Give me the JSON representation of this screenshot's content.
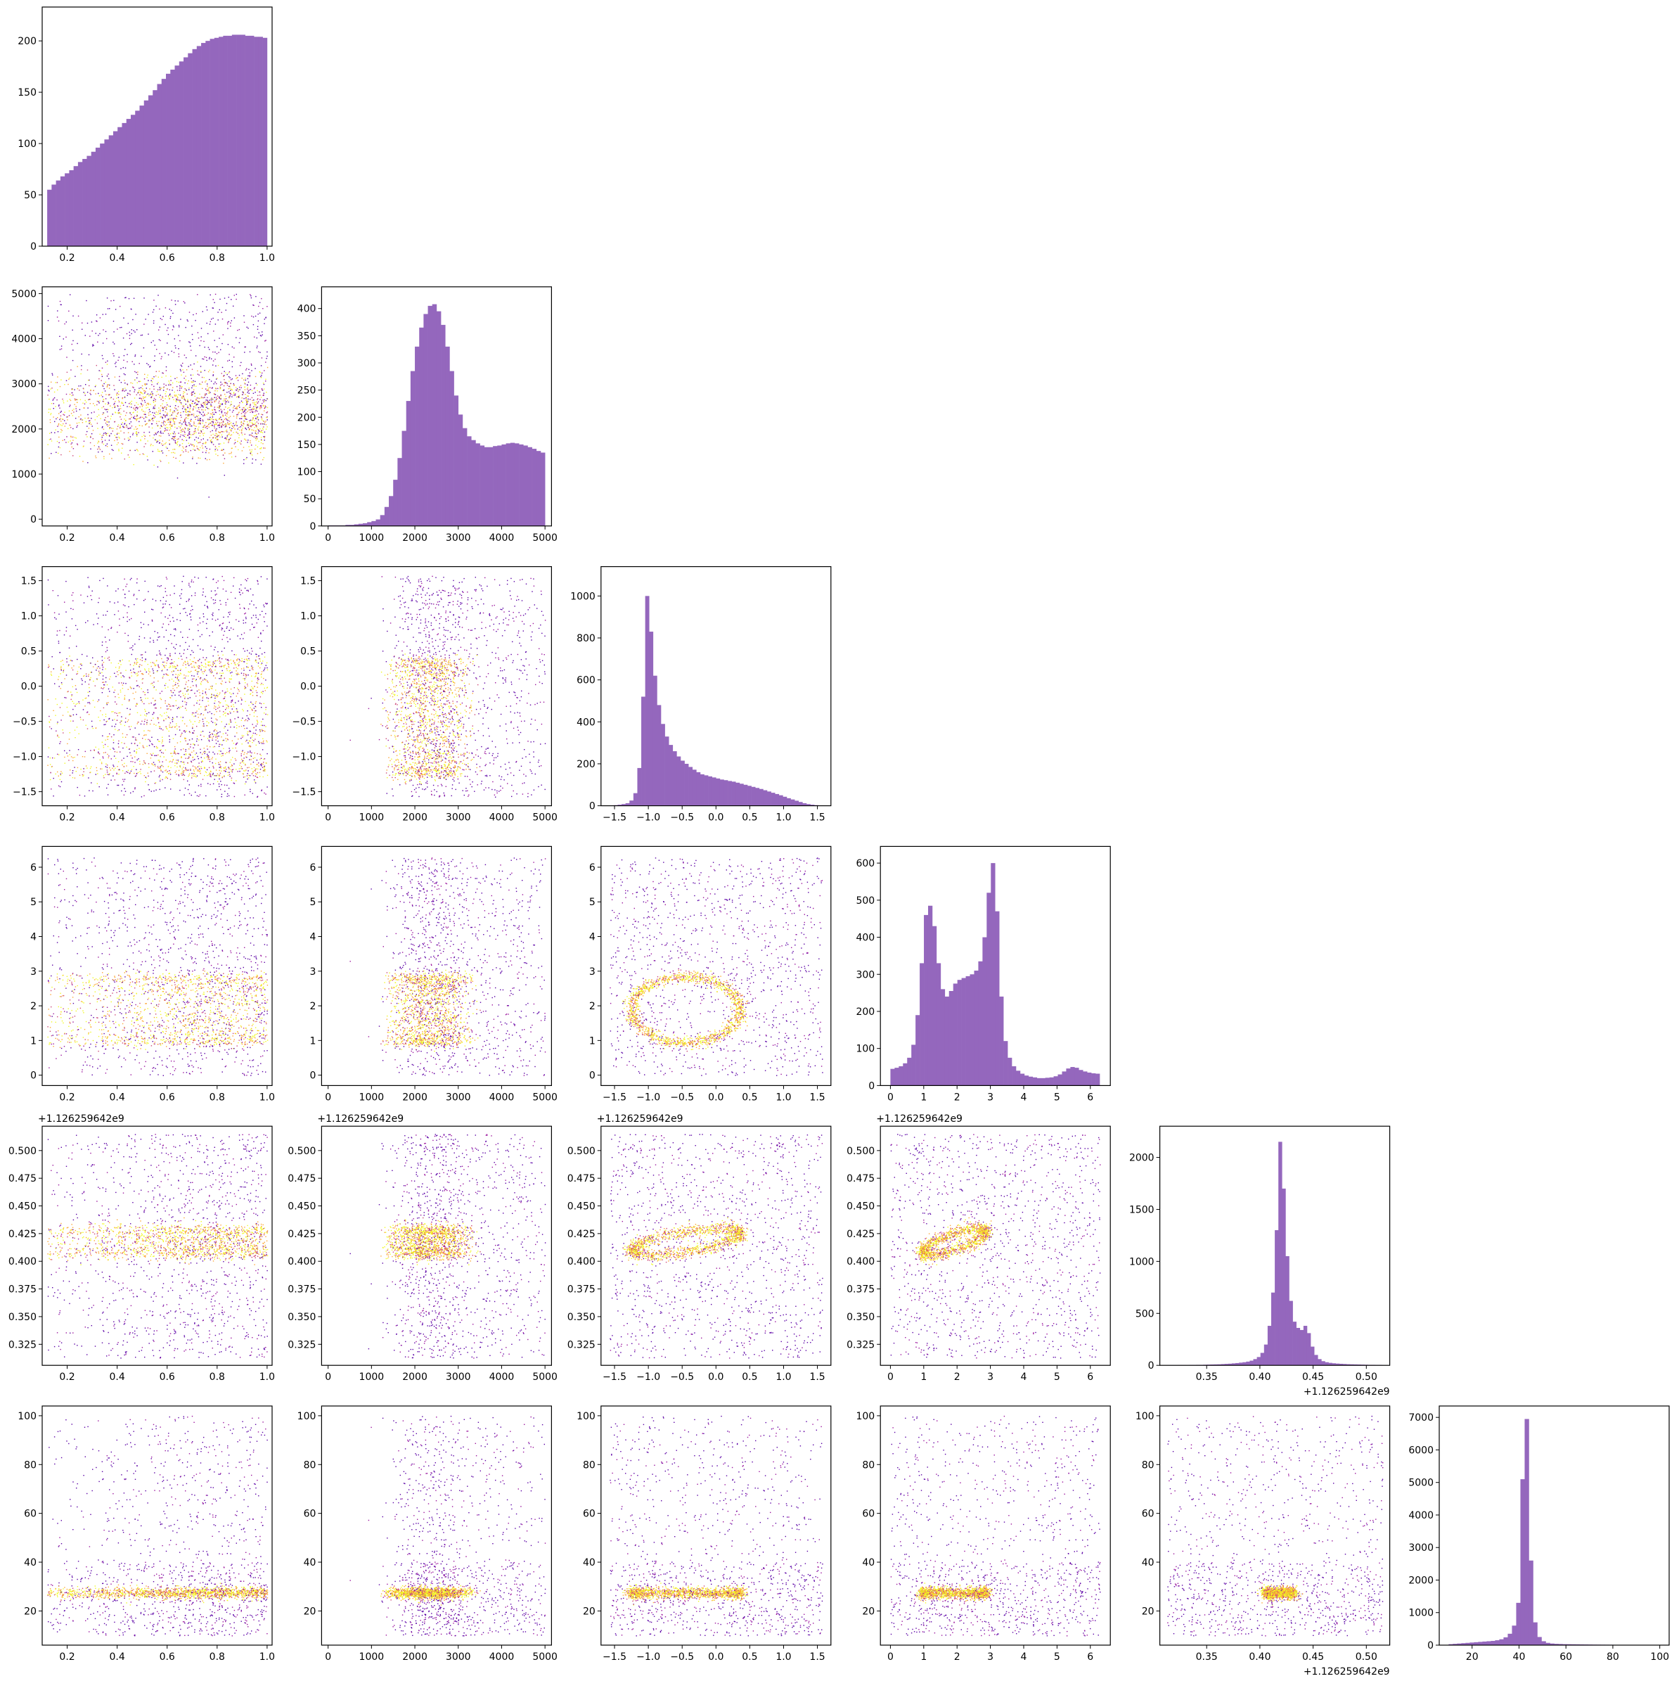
{
  "chart_data": {
    "type": "corner",
    "colors": {
      "hist": "#9467bd",
      "scatter_low": "#5b03a6",
      "scatter_mid": "#cc4778",
      "scatter_high": "#f0f921",
      "axes": "#000000"
    },
    "grid": false,
    "legend": "none",
    "parameters": [
      {
        "range": [
          0.1,
          1.02
        ],
        "ticks": [
          0.2,
          0.4,
          0.6,
          0.8,
          1.0
        ],
        "tick_labels": [
          "0.2",
          "0.4",
          "0.6",
          "0.8",
          "1.0"
        ],
        "offset": ""
      },
      {
        "range": [
          -150,
          5150
        ],
        "ticks": [
          0,
          1000,
          2000,
          3000,
          4000,
          5000
        ],
        "tick_labels": [
          "0",
          "1000",
          "2000",
          "3000",
          "4000",
          "5000"
        ],
        "offset": ""
      },
      {
        "range": [
          -1.7,
          1.7
        ],
        "ticks": [
          -1.5,
          -1.0,
          -0.5,
          0.0,
          0.5,
          1.0,
          1.5
        ],
        "tick_labels": [
          "−1.5",
          "−1.0",
          "−0.5",
          "0.0",
          "0.5",
          "1.0",
          "1.5"
        ],
        "offset": ""
      },
      {
        "range": [
          -0.3,
          6.6
        ],
        "ticks": [
          0,
          1,
          2,
          3,
          4,
          5,
          6
        ],
        "tick_labels": [
          "0",
          "1",
          "2",
          "3",
          "4",
          "5",
          "6"
        ],
        "offset": ""
      },
      {
        "range": [
          0.306,
          0.522
        ],
        "ticks": [
          0.35,
          0.4,
          0.45,
          0.5
        ],
        "tick_labels": [
          "0.35",
          "0.40",
          "0.45",
          "0.50"
        ],
        "offset": "+1.126259642e9"
      },
      {
        "range": [
          6,
          104
        ],
        "ticks": [
          20,
          40,
          60,
          80,
          100
        ],
        "tick_labels": [
          "20",
          "40",
          "60",
          "80",
          "100"
        ],
        "offset": ""
      }
    ],
    "y_ticks": [
      {
        "ticks": [
          0,
          50,
          100,
          150,
          200
        ],
        "labels": [
          "0",
          "50",
          "100",
          "150",
          "200"
        ]
      },
      {
        "ticks": [
          0,
          1000,
          2000,
          3000,
          4000,
          5000
        ],
        "labels": [
          "0",
          "1000",
          "2000",
          "3000",
          "4000",
          "5000"
        ]
      },
      {
        "ticks": [
          -1.5,
          -1.0,
          -0.5,
          0.0,
          0.5,
          1.0,
          1.5
        ],
        "labels": [
          "−1.5",
          "−1.0",
          "−0.5",
          "0.0",
          "0.5",
          "1.0",
          "1.5"
        ]
      },
      {
        "ticks": [
          0,
          1,
          2,
          3,
          4,
          5,
          6
        ],
        "labels": [
          "0",
          "1",
          "2",
          "3",
          "4",
          "5",
          "6"
        ]
      },
      {
        "ticks": [
          0.325,
          0.35,
          0.375,
          0.4,
          0.425,
          0.45,
          0.475,
          0.5
        ],
        "labels": [
          "0.325",
          "0.350",
          "0.375",
          "0.400",
          "0.425",
          "0.450",
          "0.475",
          "0.500"
        ]
      },
      {
        "ticks": [
          20,
          40,
          60,
          80,
          100
        ],
        "labels": [
          "20",
          "40",
          "60",
          "80",
          "100"
        ]
      }
    ],
    "histograms": [
      {
        "ylim": [
          0,
          233
        ],
        "yticks": [
          0,
          50,
          100,
          150,
          200
        ],
        "ylabels": [
          "0",
          "50",
          "100",
          "150",
          "200"
        ],
        "x_start": 0.12,
        "x_end": 1.0,
        "values": [
          55,
          60,
          64,
          68,
          71,
          74,
          78,
          82,
          85,
          88,
          92,
          96,
          100,
          104,
          108,
          112,
          116,
          120,
          124,
          128,
          132,
          137,
          142,
          147,
          152,
          158,
          163,
          168,
          172,
          176,
          180,
          184,
          188,
          192,
          195,
          198,
          200,
          202,
          203,
          204,
          205,
          205,
          206,
          206,
          206,
          205,
          205,
          204,
          204,
          203
        ]
      },
      {
        "ylim": [
          0,
          440
        ],
        "yticks": [
          0,
          50,
          100,
          150,
          200,
          250,
          300,
          350,
          400
        ],
        "ylabels": [
          "0",
          "50",
          "100",
          "150",
          "200",
          "250",
          "300",
          "350",
          "400"
        ],
        "x_start": 0,
        "x_end": 5000,
        "values": [
          1,
          1,
          1,
          1,
          2,
          2,
          3,
          4,
          5,
          7,
          9,
          12,
          20,
          35,
          55,
          85,
          125,
          175,
          230,
          285,
          330,
          365,
          390,
          405,
          408,
          395,
          370,
          330,
          285,
          240,
          205,
          180,
          165,
          158,
          152,
          148,
          145,
          145,
          147,
          148,
          150,
          152,
          153,
          152,
          150,
          148,
          145,
          142,
          138,
          135
        ]
      },
      {
        "ylim": [
          0,
          1140
        ],
        "yticks": [
          0,
          200,
          400,
          600,
          800,
          1000
        ],
        "ylabels": [
          "0",
          "200",
          "400",
          "600",
          "800",
          "1000"
        ],
        "x_start": -1.57,
        "x_end": 1.57,
        "values": [
          2,
          3,
          5,
          8,
          12,
          25,
          60,
          180,
          520,
          1000,
          830,
          620,
          480,
          390,
          330,
          290,
          260,
          235,
          215,
          200,
          185,
          172,
          160,
          150,
          145,
          140,
          135,
          130,
          125,
          122,
          118,
          115,
          110,
          105,
          100,
          95,
          90,
          85,
          80,
          74,
          68,
          62,
          56,
          50,
          43,
          36,
          30,
          24,
          18,
          12,
          8,
          5,
          3,
          2
        ]
      },
      {
        "ylim": [
          0,
          645
        ],
        "yticks": [
          0,
          100,
          200,
          300,
          400,
          500,
          600
        ],
        "ylabels": [
          "0",
          "100",
          "200",
          "300",
          "400",
          "500",
          "600"
        ],
        "x_start": 0,
        "x_end": 6.28,
        "values": [
          45,
          48,
          52,
          60,
          75,
          110,
          190,
          330,
          460,
          485,
          430,
          330,
          260,
          240,
          255,
          275,
          285,
          290,
          295,
          300,
          310,
          335,
          400,
          520,
          600,
          470,
          240,
          120,
          75,
          52,
          40,
          32,
          27,
          24,
          22,
          20,
          20,
          21,
          22,
          25,
          30,
          38,
          46,
          50,
          48,
          42,
          38,
          35,
          33,
          32
        ]
      },
      {
        "ylim": [
          0,
          2300
        ],
        "yticks": [
          0,
          500,
          1000,
          1500,
          2000
        ],
        "ylabels": [
          "0",
          "500",
          "1000",
          "1500",
          "2000"
        ],
        "x_start": 0.313,
        "x_end": 0.515,
        "values": [
          2,
          2,
          2,
          3,
          3,
          3,
          4,
          4,
          5,
          5,
          6,
          7,
          8,
          9,
          10,
          12,
          14,
          16,
          19,
          22,
          26,
          30,
          36,
          45,
          60,
          80,
          120,
          200,
          380,
          700,
          1300,
          2150,
          1700,
          1050,
          620,
          420,
          360,
          340,
          380,
          310,
          180,
          100,
          60,
          40,
          30,
          24,
          20,
          17,
          15,
          13,
          11,
          10,
          9,
          8,
          7,
          6,
          5,
          5,
          4,
          4
        ]
      },
      {
        "ylim": [
          0,
          7350
        ],
        "yticks": [
          0,
          1000,
          2000,
          3000,
          4000,
          5000,
          6000,
          7000
        ],
        "ylabels": [
          "0",
          "1000",
          "2000",
          "3000",
          "4000",
          "5000",
          "6000",
          "7000"
        ],
        "x_start": 10,
        "x_end": 100,
        "values": [
          30,
          40,
          50,
          60,
          70,
          80,
          90,
          100,
          110,
          120,
          130,
          150,
          180,
          240,
          350,
          600,
          1300,
          5100,
          6950,
          2600,
          700,
          250,
          120,
          70,
          50,
          40,
          35,
          30,
          28,
          26,
          24,
          22,
          20,
          18,
          16,
          15,
          14,
          13,
          12,
          11,
          10,
          10,
          9,
          9,
          8,
          8,
          8,
          7,
          7,
          7
        ]
      }
    ],
    "scatter_points_per_panel": 2600
  }
}
